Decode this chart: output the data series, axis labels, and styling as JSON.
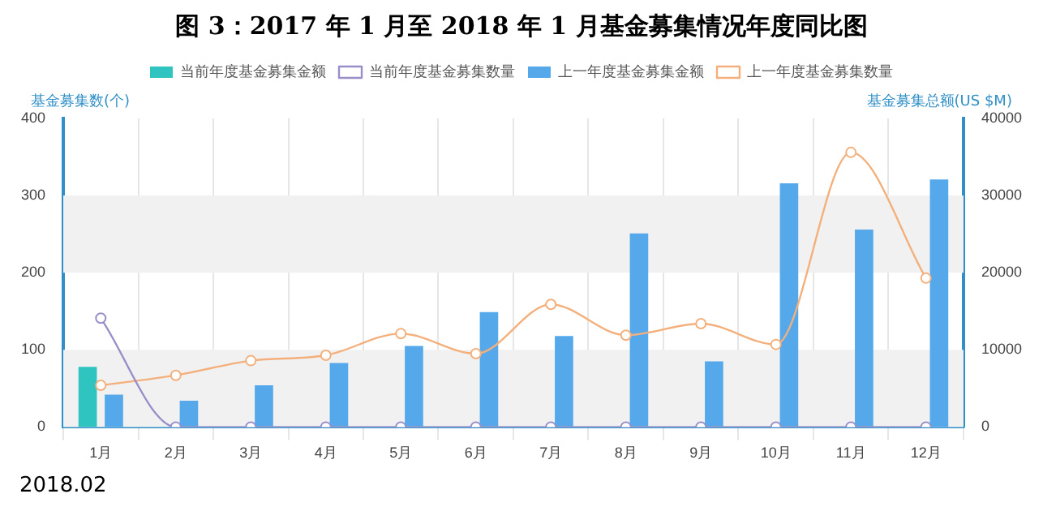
{
  "chart_data": {
    "type": "bar",
    "title": "图 3：2017 年 1 月至 2018 年 1 月基金募集情况年度同比图",
    "ylabel": "基金募集数(个)",
    "y2label": "基金募集总额(US $M)",
    "categories": [
      "1月",
      "2月",
      "3月",
      "4月",
      "5月",
      "6月",
      "7月",
      "8月",
      "9月",
      "10月",
      "11月",
      "12月"
    ],
    "series": [
      {
        "name": "当前年度基金募集金额",
        "axis": "y2",
        "color": "#2fc4c0",
        "values": [
          7800,
          null,
          null,
          null,
          null,
          null,
          null,
          null,
          null,
          null,
          null,
          null
        ]
      },
      {
        "name": "当前年度基金募集数量",
        "type": "line",
        "color": "#9a8ec8",
        "values": [
          141,
          0,
          0,
          0,
          0,
          0,
          0,
          0,
          0,
          0,
          0,
          0
        ]
      },
      {
        "name": "上一年度基金募集金额",
        "axis": "y2",
        "color": "#55a9eb",
        "values": [
          4200,
          3400,
          5400,
          8300,
          10500,
          14900,
          11800,
          25100,
          8500,
          31600,
          25600,
          32100
        ]
      },
      {
        "name": "上一年度基金募集数量",
        "type": "line",
        "color": "#f4b07c",
        "values": [
          54,
          67,
          86,
          93,
          121,
          95,
          159,
          119,
          134,
          107,
          356,
          193
        ]
      }
    ],
    "ylim": [
      0,
      400
    ],
    "yticks": [
      0,
      100,
      200,
      300,
      400
    ],
    "y2lim": [
      0,
      40000
    ],
    "y2ticks": [
      0,
      10000,
      20000,
      30000,
      40000
    ],
    "grid": true,
    "legend": "top",
    "marker": "circle",
    "annotations": [
      "2018.02"
    ]
  }
}
